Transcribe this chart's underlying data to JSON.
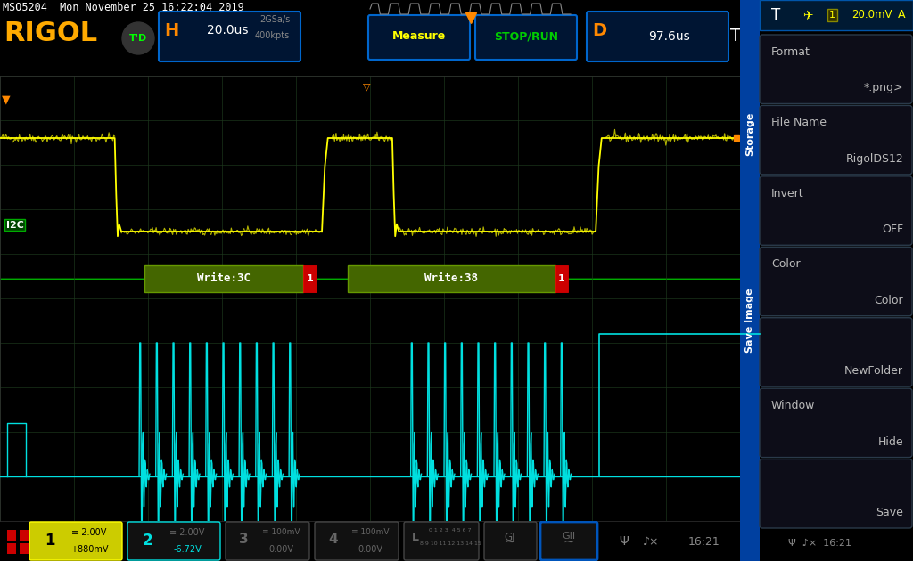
{
  "bg_color": "#000000",
  "ch1_color": "#ffff00",
  "ch2_color": "#00e0e0",
  "label_green": "#00cc00",
  "orange_color": "#ff8800",
  "rigol_color": "#ffaa00",
  "grid_color": "#1a3a1a",
  "title_text": "MSO5204  Mon November 25 16:22:04 2019",
  "h_scale": "20.0us",
  "sample_rate": "2GSa/s",
  "kpts": "400kpts",
  "d_val": "97.6us",
  "ch1_vdiv": "2.00V",
  "ch1_offset": "+880mV",
  "ch2_vdiv": "2.00V",
  "ch2_offset": "-6.72V",
  "ch3_vdiv": "100mV",
  "ch4_vdiv": "100mV",
  "time": "16:21",
  "write3c": "Write:3C",
  "write38": "Write:38",
  "menu_boxes": [
    {
      "label_tl": "Format",
      "label_br": "*.png>"
    },
    {
      "label_tl": "File Name",
      "label_br": "RigolDS12"
    },
    {
      "label_tl": "Invert",
      "label_br": "OFF"
    },
    {
      "label_tl": "Color",
      "label_br": "Color"
    },
    {
      "label_tl": "",
      "label_br": "NewFolder"
    },
    {
      "label_tl": "Window",
      "label_br": "Hide"
    },
    {
      "label_tl": "",
      "label_br": "Save"
    }
  ]
}
